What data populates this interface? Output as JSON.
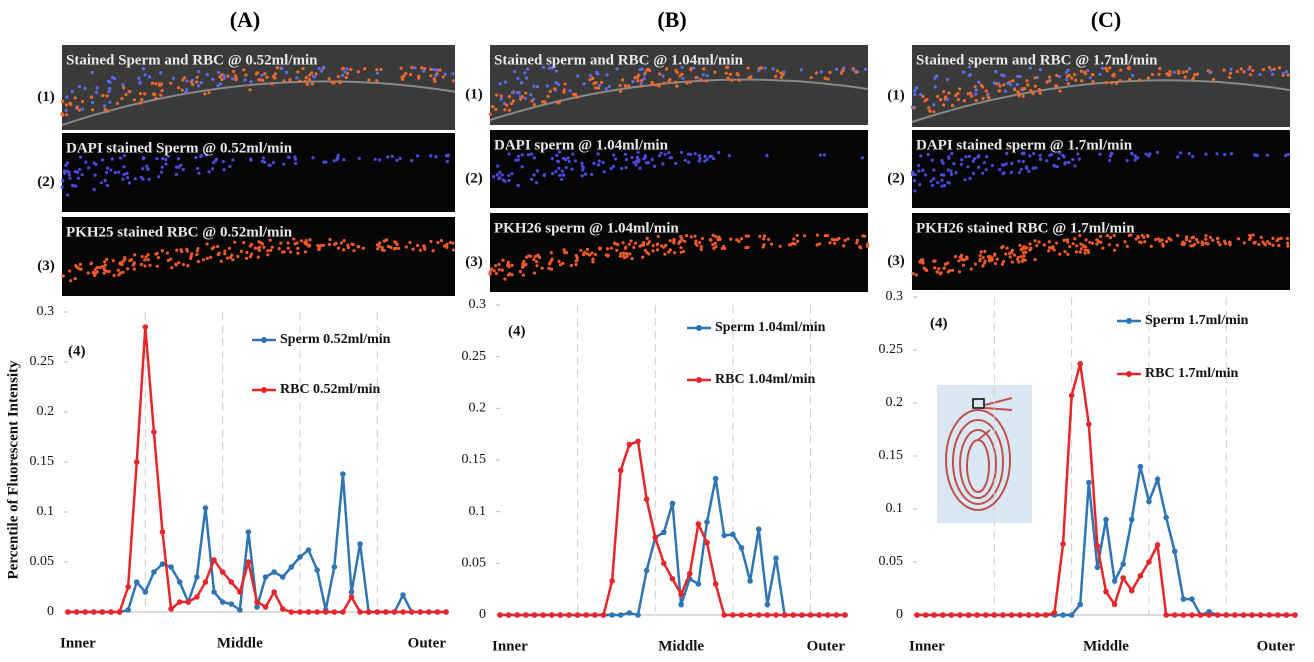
{
  "y_label": "Percentile of Fluorescent Intensity",
  "chart_data": [
    {
      "type": "line",
      "title": "(A)",
      "images": [
        {
          "label": "(1)",
          "caption": "Stained Sperm and RBC @ 0.52ml/min"
        },
        {
          "label": "(2)",
          "caption": "DAPI stained Sperm @ 0.52ml/min"
        },
        {
          "label": "(3)",
          "caption": "PKH25 stained RBC @ 0.52ml/min"
        }
      ],
      "annotation": "(4)",
      "categories": [
        "Inner",
        null,
        null,
        null,
        null,
        null,
        null,
        null,
        null,
        null,
        null,
        null,
        null,
        null,
        null,
        null,
        null,
        null,
        null,
        null,
        "Middle",
        null,
        null,
        null,
        null,
        null,
        null,
        null,
        null,
        null,
        null,
        null,
        null,
        null,
        null,
        null,
        null,
        null,
        null,
        null,
        null,
        null,
        null,
        null,
        "Outer"
      ],
      "series": [
        {
          "name": "Sperm 0.52ml/min",
          "color": "#2e75b6",
          "values": [
            0,
            0,
            0,
            0,
            0,
            0,
            0,
            0.002,
            0.03,
            0.02,
            0.04,
            0.048,
            0.045,
            0.03,
            0.01,
            0.035,
            0.104,
            0.02,
            0.01,
            0.008,
            0.002,
            0.08,
            0.005,
            0.035,
            0.04,
            0.035,
            0.045,
            0.055,
            0.062,
            0.042,
            0.002,
            0.045,
            0.138,
            0.02,
            0.068,
            0,
            0,
            0,
            0,
            0.017,
            0,
            0,
            0,
            0,
            0
          ]
        },
        {
          "name": "RBC 0.52ml/min",
          "color": "#e8262a",
          "values": [
            0,
            0,
            0,
            0,
            0,
            0,
            0,
            0.025,
            0.15,
            0.285,
            0.18,
            0.08,
            0.003,
            0.01,
            0.01,
            0.015,
            0.03,
            0.052,
            0.04,
            0.03,
            0.02,
            0.05,
            0.01,
            0.005,
            0.02,
            0.003,
            0,
            0,
            0,
            0,
            0,
            0,
            0,
            0.015,
            0,
            0,
            0,
            0,
            0,
            0,
            0,
            0,
            0,
            0,
            0
          ]
        }
      ],
      "ylim": [
        0,
        0.3
      ],
      "yticks": [
        0,
        0.05,
        0.1,
        0.15,
        0.2,
        0.25,
        0.3
      ],
      "grid": true
    },
    {
      "type": "line",
      "title": "(B)",
      "images": [
        {
          "label": "(1)",
          "caption": "Stained sperm and RBC @ 1.04ml/min"
        },
        {
          "label": "(2)",
          "caption": "DAPI sperm @ 1.04ml/min"
        },
        {
          "label": "(3)",
          "caption": "PKH26 sperm @ 1.04ml/min"
        }
      ],
      "annotation": "(4)",
      "categories": [
        "Inner",
        null,
        null,
        null,
        null,
        null,
        null,
        null,
        null,
        null,
        null,
        null,
        null,
        null,
        null,
        null,
        null,
        null,
        null,
        null,
        null,
        "Middle",
        null,
        null,
        null,
        null,
        null,
        null,
        null,
        null,
        null,
        null,
        null,
        null,
        null,
        null,
        null,
        null,
        null,
        null,
        "Outer"
      ],
      "series": [
        {
          "name": "Sperm 1.04ml/min",
          "color": "#2e75b6",
          "values": [
            0,
            0,
            0,
            0,
            0,
            0,
            0,
            0,
            0,
            0,
            0,
            0,
            0,
            0,
            0,
            0.002,
            0,
            0.043,
            0.075,
            0.08,
            0.108,
            0.01,
            0.035,
            0.03,
            0.09,
            0.132,
            0.077,
            0.078,
            0.065,
            0.033,
            0.083,
            0.01,
            0.055,
            0,
            0,
            0,
            0,
            0,
            0,
            0,
            0
          ]
        },
        {
          "name": "RBC 1.04ml/min",
          "color": "#e8262a",
          "values": [
            0,
            0,
            0,
            0,
            0,
            0,
            0,
            0,
            0,
            0,
            0,
            0,
            0,
            0.033,
            0.14,
            0.165,
            0.168,
            0.112,
            0.075,
            0.05,
            0.035,
            0.02,
            0.04,
            0.088,
            0.07,
            0.03,
            0,
            0,
            0,
            0,
            0,
            0,
            0,
            0,
            0,
            0,
            0,
            0,
            0,
            0,
            0
          ]
        }
      ],
      "ylim": [
        0,
        0.3
      ],
      "yticks": [
        0,
        0.05,
        0.1,
        0.15,
        0.2,
        0.25,
        0.3
      ],
      "grid": true
    },
    {
      "type": "line",
      "title": "(C)",
      "images": [
        {
          "label": "(1)",
          "caption": "Stained sperm and RBC @ 1.7ml/min"
        },
        {
          "label": "(2)",
          "caption": "DAPI stained sperm @ 1.7ml/min"
        },
        {
          "label": "(3)",
          "caption": "PKH26 stained RBC @ 1.7ml/min"
        }
      ],
      "annotation": "(4)",
      "categories": [
        "Inner",
        null,
        null,
        null,
        null,
        null,
        null,
        null,
        null,
        null,
        null,
        null,
        null,
        null,
        null,
        null,
        null,
        null,
        null,
        null,
        null,
        null,
        "Middle",
        null,
        null,
        null,
        null,
        null,
        null,
        null,
        null,
        null,
        null,
        null,
        null,
        null,
        null,
        null,
        null,
        null,
        null,
        null,
        null,
        null,
        "Outer"
      ],
      "series": [
        {
          "name": "Sperm 1.7ml/min",
          "color": "#2e75b6",
          "values": [
            0,
            0,
            0,
            0,
            0,
            0,
            0,
            0,
            0,
            0,
            0,
            0,
            0,
            0,
            0,
            0,
            0,
            0,
            0,
            0.01,
            0.125,
            0.045,
            0.09,
            0.032,
            0.048,
            0.09,
            0.14,
            0.107,
            0.128,
            0.092,
            0.06,
            0.015,
            0.015,
            0,
            0.003,
            0,
            0,
            0,
            0,
            0,
            0,
            0,
            0,
            0,
            0
          ]
        },
        {
          "name": "RBC 1.7ml/min",
          "color": "#e8262a",
          "values": [
            0,
            0,
            0,
            0,
            0,
            0,
            0,
            0,
            0,
            0,
            0,
            0,
            0,
            0,
            0,
            0,
            0.002,
            0.067,
            0.207,
            0.237,
            0.18,
            0.065,
            0.022,
            0.01,
            0.035,
            0.023,
            0.037,
            0.05,
            0.066,
            0,
            0,
            0,
            0,
            0,
            0,
            0,
            0,
            0,
            0,
            0,
            0,
            0,
            0,
            0,
            0
          ]
        }
      ],
      "ylim": [
        0,
        0.3
      ],
      "yticks": [
        0,
        0.05,
        0.1,
        0.15,
        0.2,
        0.25,
        0.3
      ],
      "grid": true
    }
  ]
}
